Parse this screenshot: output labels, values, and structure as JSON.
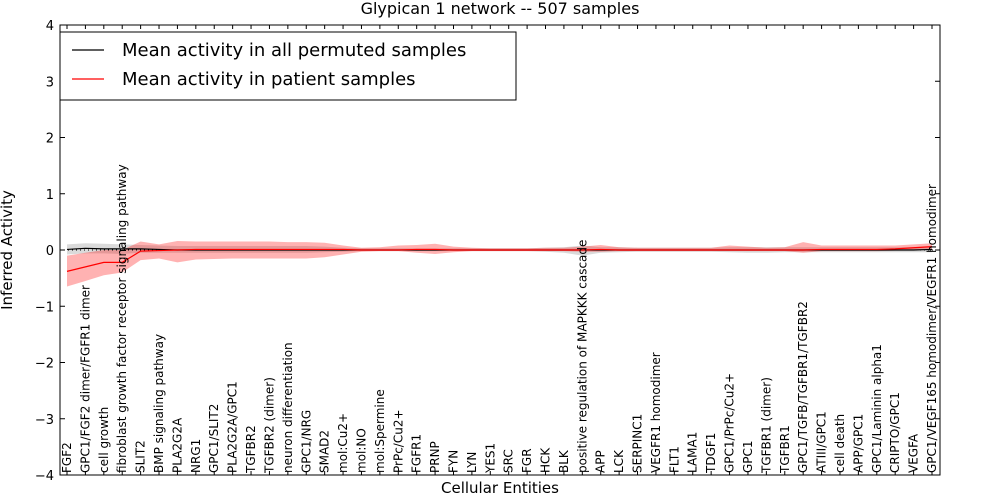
{
  "chart_data": {
    "type": "line",
    "title": "Glypican 1 network -- 507 samples",
    "xlabel": "Cellular Entities",
    "ylabel": "Inferred Activity",
    "ylim": [
      -4,
      4
    ],
    "yticks": [
      4,
      3,
      2,
      1,
      0,
      -1,
      -2,
      -3,
      -4
    ],
    "ytick_labels": [
      "4",
      "3",
      "2",
      "1",
      "0",
      "−1",
      "−2",
      "−3",
      "−4"
    ],
    "grid": false,
    "legend": {
      "placement": "top-left",
      "entries": [
        {
          "label": "Mean activity in all permuted samples",
          "color": "#000000"
        },
        {
          "label": "Mean activity in patient samples",
          "color": "#ff0000"
        }
      ]
    },
    "categories": [
      "FGF2",
      "GPC1/FGF2 dimer/FGFR1 dimer",
      "cell growth",
      "fibroblast growth factor receptor signaling pathway",
      "SLIT2",
      "BMP signaling pathway",
      "PLA2G2A",
      "NRG1",
      "GPC1/SLIT2",
      "PLA2G2A/GPC1",
      "TGFBR2",
      "TGFBR2 (dimer)",
      "neuron differentiation",
      "GPC1/NRG",
      "SMAD2",
      "mol:Cu2+",
      "mol:NO",
      "mol:Spermine",
      "PrPc/Cu2+",
      "FGFR1",
      "PRNP",
      "FYN",
      "LYN",
      "YES1",
      "SRC",
      "FGR",
      "HCK",
      "BLK",
      "positive regulation of MAPKKK cascade",
      "APP",
      "LCK",
      "SERPINC1",
      "VEGFR1 homodimer",
      "FLT1",
      "LAMA1",
      "TDGF1",
      "GPC1/PrPc/Cu2+",
      "GPC1",
      "TGFBR1 (dimer)",
      "TGFBR1",
      "GPC1/TGFB/TGFBR1/TGFBR2",
      "ATIII/GPC1",
      "cell death",
      "APP/GPC1",
      "GPC1/Laminin alpha1",
      "CRIPTO/GPC1",
      "VEGFA",
      "GPC1/VEGF165 homodimer/VEGFR1 homodimer"
    ],
    "series": [
      {
        "name": "Mean activity in all permuted samples",
        "color": "#000000",
        "values": [
          0.01,
          0.03,
          0.02,
          0.02,
          0.02,
          0.01,
          0.0,
          0.0,
          0.0,
          0.0,
          0.0,
          0.0,
          0.0,
          0.0,
          0.0,
          0.0,
          0.0,
          0.0,
          0.0,
          0.0,
          0.0,
          0.0,
          0.0,
          0.0,
          0.0,
          0.0,
          0.0,
          0.0,
          0.0,
          0.0,
          0.0,
          0.0,
          0.0,
          0.0,
          0.0,
          0.0,
          0.0,
          0.0,
          0.0,
          0.0,
          0.0,
          0.0,
          0.0,
          0.0,
          0.0,
          0.0,
          0.0,
          0.01
        ],
        "band_lower": [
          -0.08,
          -0.06,
          -0.06,
          -0.07,
          -0.05,
          -0.05,
          -0.05,
          -0.05,
          -0.05,
          -0.05,
          -0.05,
          -0.05,
          -0.05,
          -0.05,
          -0.04,
          -0.03,
          -0.02,
          -0.02,
          -0.02,
          -0.02,
          -0.02,
          -0.02,
          -0.02,
          -0.02,
          -0.02,
          -0.02,
          -0.03,
          -0.05,
          -0.1,
          -0.05,
          -0.04,
          -0.03,
          -0.03,
          -0.03,
          -0.03,
          -0.03,
          -0.04,
          -0.05,
          -0.05,
          -0.04,
          -0.04,
          -0.04,
          -0.04,
          -0.04,
          -0.04,
          -0.04,
          -0.04,
          -0.04
        ],
        "band_upper": [
          0.1,
          0.12,
          0.11,
          0.1,
          0.09,
          0.08,
          0.07,
          0.07,
          0.07,
          0.07,
          0.07,
          0.07,
          0.07,
          0.07,
          0.06,
          0.04,
          0.03,
          0.03,
          0.03,
          0.03,
          0.03,
          0.03,
          0.03,
          0.03,
          0.03,
          0.03,
          0.04,
          0.05,
          0.08,
          0.05,
          0.05,
          0.04,
          0.04,
          0.04,
          0.04,
          0.04,
          0.05,
          0.05,
          0.05,
          0.05,
          0.05,
          0.05,
          0.05,
          0.05,
          0.05,
          0.05,
          0.05,
          0.06
        ]
      },
      {
        "name": "Mean activity in patient samples",
        "color": "#ff0000",
        "values": [
          -0.38,
          -0.3,
          -0.22,
          -0.22,
          -0.02,
          -0.01,
          0.0,
          0.01,
          0.01,
          0.01,
          0.01,
          0.01,
          0.01,
          0.01,
          0.01,
          0.01,
          0.0,
          0.0,
          0.0,
          0.01,
          0.01,
          0.0,
          0.0,
          0.0,
          0.0,
          0.0,
          0.0,
          0.0,
          0.0,
          0.01,
          0.0,
          0.0,
          0.0,
          0.0,
          0.0,
          0.0,
          0.0,
          0.0,
          0.0,
          0.0,
          0.0,
          0.01,
          0.01,
          0.01,
          0.01,
          0.02,
          0.04,
          0.06
        ],
        "band_lower": [
          -0.65,
          -0.55,
          -0.45,
          -0.4,
          -0.18,
          -0.15,
          -0.22,
          -0.17,
          -0.16,
          -0.15,
          -0.15,
          -0.15,
          -0.15,
          -0.15,
          -0.13,
          -0.08,
          -0.03,
          -0.02,
          -0.02,
          -0.05,
          -0.07,
          -0.04,
          -0.02,
          -0.02,
          -0.02,
          -0.02,
          -0.02,
          -0.02,
          -0.03,
          -0.03,
          -0.02,
          -0.02,
          -0.02,
          -0.02,
          -0.02,
          -0.02,
          -0.02,
          -0.02,
          -0.02,
          -0.02,
          -0.05,
          -0.02,
          -0.02,
          -0.02,
          -0.02,
          -0.01,
          0.0,
          0.02
        ],
        "band_upper": [
          -0.1,
          -0.05,
          0.0,
          0.0,
          0.15,
          0.1,
          0.16,
          0.15,
          0.15,
          0.15,
          0.15,
          0.15,
          0.14,
          0.14,
          0.13,
          0.08,
          0.04,
          0.05,
          0.08,
          0.09,
          0.11,
          0.06,
          0.04,
          0.03,
          0.03,
          0.03,
          0.04,
          0.04,
          0.06,
          0.09,
          0.05,
          0.04,
          0.04,
          0.04,
          0.04,
          0.04,
          0.08,
          0.06,
          0.04,
          0.05,
          0.14,
          0.08,
          0.08,
          0.08,
          0.08,
          0.08,
          0.1,
          0.12
        ]
      }
    ],
    "baseline": {
      "style": "dotted",
      "color": "#000000",
      "y": 0
    }
  }
}
